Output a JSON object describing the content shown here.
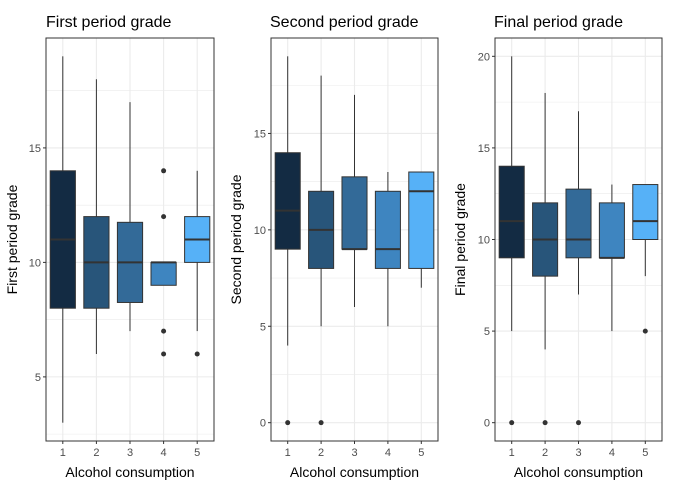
{
  "chart_data": [
    {
      "type": "box",
      "title": "First period grade",
      "xlabel": "Alcohol consumption",
      "ylabel": "First period grade",
      "categories": [
        "1",
        "2",
        "3",
        "4",
        "5"
      ],
      "y_ticks": [
        5,
        10,
        15
      ],
      "ylim": [
        2.2,
        19.8
      ],
      "grid": true,
      "boxes": [
        {
          "category": "1",
          "min": 3,
          "q1": 8,
          "median": 11,
          "q3": 14,
          "max": 19,
          "outliers": []
        },
        {
          "category": "2",
          "min": 6,
          "q1": 8,
          "median": 10,
          "q3": 12,
          "max": 18,
          "outliers": []
        },
        {
          "category": "3",
          "min": 7,
          "q1": 8.25,
          "median": 10,
          "q3": 11.75,
          "max": 17,
          "outliers": []
        },
        {
          "category": "4",
          "min": 9,
          "q1": 9,
          "median": 10,
          "q3": 10,
          "max": 10,
          "outliers": [
            6,
            7,
            12,
            14
          ]
        },
        {
          "category": "5",
          "min": 7,
          "q1": 10,
          "median": 11,
          "q3": 12,
          "max": 14,
          "outliers": [
            6
          ]
        }
      ]
    },
    {
      "type": "box",
      "title": "Second period grade",
      "xlabel": "Alcohol consumption",
      "ylabel": "Second period grade",
      "categories": [
        "1",
        "2",
        "3",
        "4",
        "5"
      ],
      "y_ticks": [
        0,
        5,
        10,
        15
      ],
      "ylim": [
        -0.95,
        19.95
      ],
      "grid": true,
      "boxes": [
        {
          "category": "1",
          "min": 4,
          "q1": 9,
          "median": 11,
          "q3": 14,
          "max": 19,
          "outliers": [
            0
          ]
        },
        {
          "category": "2",
          "min": 5,
          "q1": 8,
          "median": 10,
          "q3": 12,
          "max": 18,
          "outliers": [
            0
          ]
        },
        {
          "category": "3",
          "min": 6,
          "q1": 9,
          "median": 9,
          "q3": 12.75,
          "max": 17,
          "outliers": []
        },
        {
          "category": "4",
          "min": 5,
          "q1": 8,
          "median": 9,
          "q3": 12,
          "max": 13,
          "outliers": []
        },
        {
          "category": "5",
          "min": 7,
          "q1": 8,
          "median": 12,
          "q3": 13,
          "max": 13,
          "outliers": []
        }
      ]
    },
    {
      "type": "box",
      "title": "Final period grade",
      "xlabel": "Alcohol consumption",
      "ylabel": "Final period grade",
      "categories": [
        "1",
        "2",
        "3",
        "4",
        "5"
      ],
      "y_ticks": [
        0,
        5,
        10,
        15,
        20
      ],
      "ylim": [
        -1,
        21
      ],
      "grid": true,
      "boxes": [
        {
          "category": "1",
          "min": 5,
          "q1": 9,
          "median": 11,
          "q3": 14,
          "max": 20,
          "outliers": [
            0
          ]
        },
        {
          "category": "2",
          "min": 4,
          "q1": 8,
          "median": 10,
          "q3": 12,
          "max": 18,
          "outliers": [
            0
          ]
        },
        {
          "category": "3",
          "min": 7,
          "q1": 9,
          "median": 10,
          "q3": 12.75,
          "max": 17,
          "outliers": [
            0
          ]
        },
        {
          "category": "4",
          "min": 5,
          "q1": 9,
          "median": 9,
          "q3": 12,
          "max": 13,
          "outliers": []
        },
        {
          "category": "5",
          "min": 8,
          "q1": 10,
          "median": 11,
          "q3": 13,
          "max": 13,
          "outliers": [
            5
          ]
        }
      ]
    }
  ],
  "colors": {
    "fills": [
      "#132b43",
      "#28557a",
      "#336a98",
      "#3e85c0",
      "#56b1f7"
    ],
    "panel_border": "#333333",
    "grid": "#ebebeb",
    "whisker": "#333333",
    "outlier": "#333333",
    "tick_text": "#4d4d4d"
  }
}
